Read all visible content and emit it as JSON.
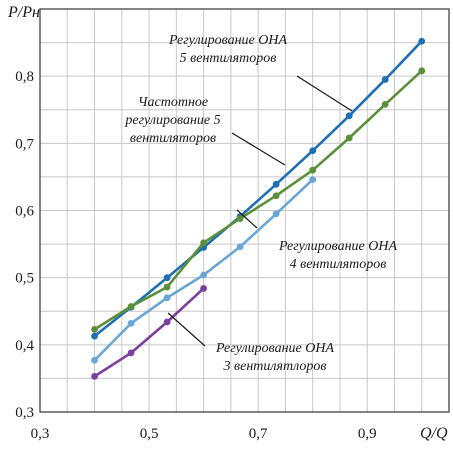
{
  "chart_data": {
    "type": "line",
    "xlabel": "Q/Q",
    "ylabel": "P/Pн",
    "xlim": [
      0.3,
      1.05
    ],
    "ylim": [
      0.3,
      0.9
    ],
    "xticks": [
      0.3,
      0.5,
      0.7,
      0.9
    ],
    "yticks": [
      0.3,
      0.4,
      0.5,
      0.6,
      0.7,
      0.8
    ],
    "xtick_labels": [
      "0,3",
      "0,5",
      "0,7",
      "0,9"
    ],
    "ytick_labels": [
      "0,3",
      "0,4",
      "0,5",
      "0,6",
      "0,7",
      "0,8"
    ],
    "grid": true,
    "series": [
      {
        "color": "#1f6fb2",
        "x": [
          0.4,
          0.467,
          0.533,
          0.6,
          0.667,
          0.733,
          0.8,
          0.867,
          0.933,
          1.0
        ],
        "y": [
          0.413,
          0.456,
          0.5,
          0.545,
          0.591,
          0.639,
          0.689,
          0.741,
          0.795,
          0.852
        ]
      },
      {
        "color": "#5c8f3a",
        "x": [
          0.4,
          0.467,
          0.533,
          0.6,
          0.667,
          0.733,
          0.8,
          0.867,
          0.933,
          1.0
        ],
        "y": [
          0.423,
          0.457,
          0.486,
          0.552,
          0.588,
          0.622,
          0.66,
          0.708,
          0.758,
          0.808
        ]
      },
      {
        "color": "#6aa6d4",
        "x": [
          0.4,
          0.467,
          0.533,
          0.6,
          0.667,
          0.733,
          0.8
        ],
        "y": [
          0.377,
          0.432,
          0.47,
          0.504,
          0.546,
          0.595,
          0.646
        ]
      },
      {
        "color": "#7b3f9c",
        "x": [
          0.4,
          0.467,
          0.533,
          0.6
        ],
        "y": [
          0.353,
          0.388,
          0.434,
          0.484
        ]
      }
    ],
    "annotations": [
      {
        "lines": [
          "Регулирование ОНА",
          "5 вентиляторов"
        ]
      },
      {
        "lines": [
          "Частотное",
          "регулирование 5",
          "вентиляторов"
        ]
      },
      {
        "lines": [
          "Регулирование ОНА",
          "4 вентиляторов"
        ]
      },
      {
        "lines": [
          "Регулирование ОНА",
          "3 вентилятлоров"
        ]
      }
    ]
  }
}
